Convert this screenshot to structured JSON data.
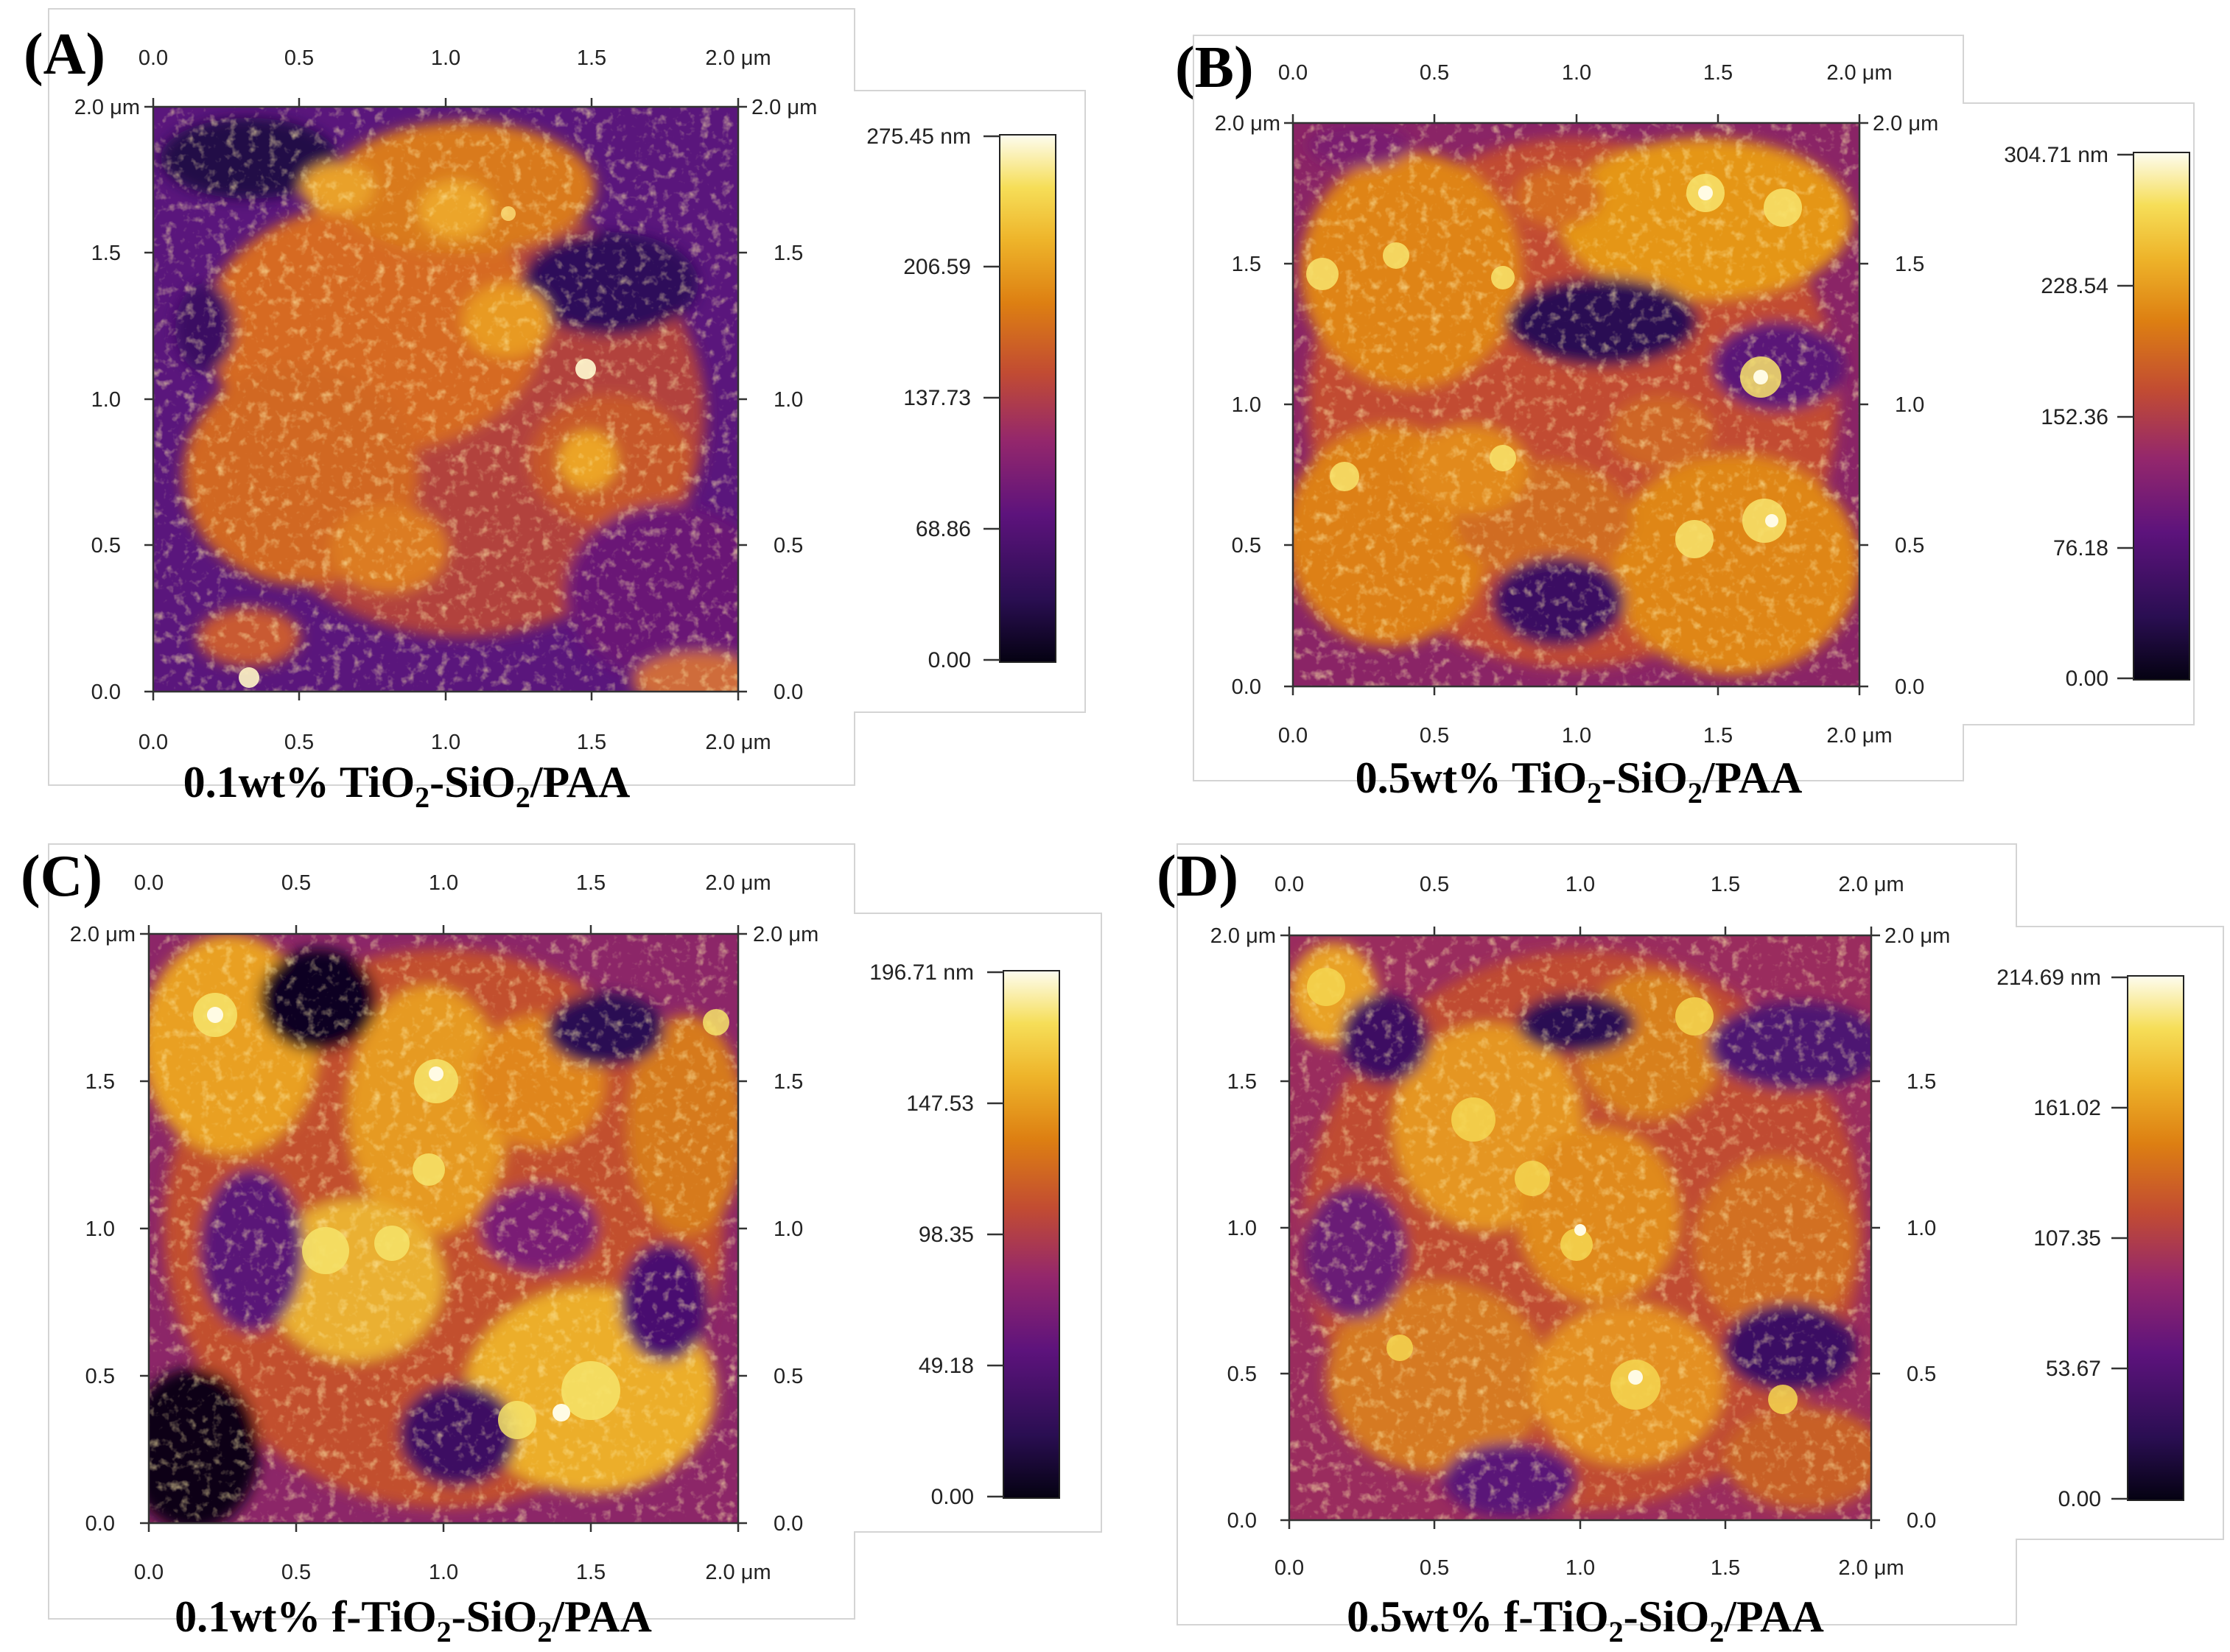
{
  "colormap": [
    "#0a0418",
    "#2a0e52",
    "#55127a",
    "#7c1e7c",
    "#a63060",
    "#cc5a2a",
    "#e4891a",
    "#f2b82e",
    "#f8e45a",
    "#fcfbe8"
  ],
  "panels": [
    {
      "id": "A",
      "label": "(A)",
      "caption": {
        "pre": "0.1wt% TiO",
        "sub1": "2",
        "mid": "-SiO",
        "sub2": "2",
        "post": "/PAA"
      },
      "top_ticks": [
        "0.0",
        "0.5",
        "1.0",
        "1.5",
        "2.0 μm"
      ],
      "bottom_ticks": [
        "0.0",
        "0.5",
        "1.0",
        "1.5",
        "2.0 μm"
      ],
      "left_ticks": [
        "2.0 μm",
        "1.5",
        "1.0",
        "0.5",
        "0.0"
      ],
      "right_ticks": [
        "2.0 μm",
        "1.5",
        "1.0",
        "0.5",
        "0.0"
      ],
      "colorbar_ticks": [
        "275.45 nm",
        "206.59",
        "137.73",
        "68.86",
        "0.00"
      ]
    },
    {
      "id": "B",
      "label": "(B)",
      "caption": {
        "pre": "0.5wt% TiO",
        "sub1": "2",
        "mid": "-SiO",
        "sub2": "2",
        "post": "/PAA"
      },
      "top_ticks": [
        "0.0",
        "0.5",
        "1.0",
        "1.5",
        "2.0 μm"
      ],
      "bottom_ticks": [
        "0.0",
        "0.5",
        "1.0",
        "1.5",
        "2.0 μm"
      ],
      "left_ticks": [
        "2.0 μm",
        "1.5",
        "1.0",
        "0.5",
        "0.0"
      ],
      "right_ticks": [
        "2.0 μm",
        "1.5",
        "1.0",
        "0.5",
        "0.0"
      ],
      "colorbar_ticks": [
        "304.71 nm",
        "228.54",
        "152.36",
        "76.18",
        "0.00"
      ]
    },
    {
      "id": "C",
      "label": "(C)",
      "caption": {
        "pre": "0.1wt% f-TiO",
        "sub1": "2",
        "mid": "-SiO",
        "sub2": "2",
        "post": "/PAA"
      },
      "top_ticks": [
        "0.0",
        "0.5",
        "1.0",
        "1.5",
        "2.0 μm"
      ],
      "bottom_ticks": [
        "0.0",
        "0.5",
        "1.0",
        "1.5",
        "2.0 μm"
      ],
      "left_ticks": [
        "2.0 μm",
        "1.5",
        "1.0",
        "0.5",
        "0.0"
      ],
      "right_ticks": [
        "2.0 μm",
        "1.5",
        "1.0",
        "0.5",
        "0.0"
      ],
      "colorbar_ticks": [
        "196.71 nm",
        "147.53",
        "98.35",
        "49.18",
        "0.00"
      ]
    },
    {
      "id": "D",
      "label": "(D)",
      "caption": {
        "pre": "0.5wt% f-TiO",
        "sub1": "2",
        "mid": "-SiO",
        "sub2": "2",
        "post": "/PAA"
      },
      "top_ticks": [
        "0.0",
        "0.5",
        "1.0",
        "1.5",
        "2.0 μm"
      ],
      "bottom_ticks": [
        "0.0",
        "0.5",
        "1.0",
        "1.5",
        "2.0 μm"
      ],
      "left_ticks": [
        "2.0 μm",
        "1.5",
        "1.0",
        "0.5",
        "0.0"
      ],
      "right_ticks": [
        "2.0 μm",
        "1.5",
        "1.0",
        "0.5",
        "0.0"
      ],
      "colorbar_ticks": [
        "214.69 nm",
        "161.02",
        "107.35",
        "53.67",
        "0.00"
      ]
    }
  ]
}
